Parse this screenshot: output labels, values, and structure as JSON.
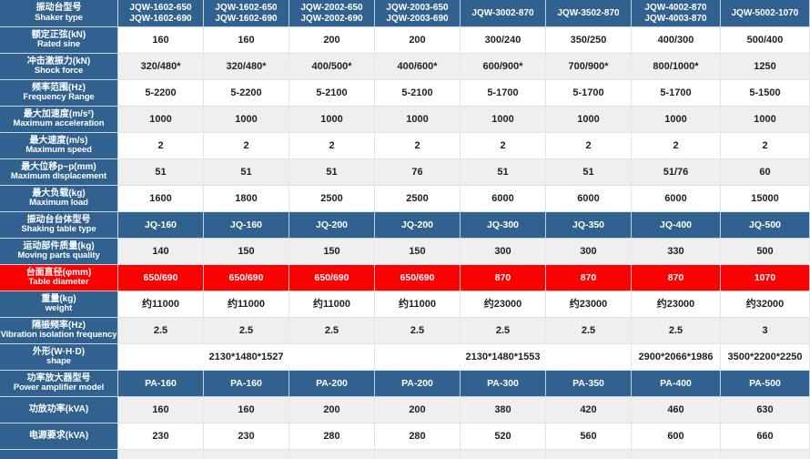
{
  "table": {
    "header": {
      "zh": "振动台型号",
      "en": "Shaker type",
      "models": [
        [
          "JQW-1602-650",
          "JQW-1602-690"
        ],
        [
          "JQW-1602-650",
          "JQW-1602-690"
        ],
        [
          "JQW-2002-650",
          "JQW-2002-690"
        ],
        [
          "JQW-2003-650",
          "JQW-2003-690"
        ],
        [
          "JQW-3002-870"
        ],
        [
          "JQW-3502-870"
        ],
        [
          "JQW-4002-870",
          "JQW-4003-870"
        ],
        [
          "JQW-5002-1070"
        ]
      ]
    },
    "colors": {
      "header_blue": "#31618f",
      "row_gray": "#efeff0",
      "highlight_red": "#fd0000"
    },
    "rows": [
      {
        "zh": "额定正弦(kN)",
        "en": "Rated sine",
        "bg": "white",
        "values": [
          "160",
          "160",
          "200",
          "200",
          "300/240",
          "350/250",
          "400/300",
          "500/400"
        ]
      },
      {
        "zh": "冲击激振力(kN)",
        "en": "Shock force",
        "bg": "gray",
        "values": [
          "320/480*",
          "320/480*",
          "400/500*",
          "400/600*",
          "600/900*",
          "700/900*",
          "800/1000*",
          "1250"
        ]
      },
      {
        "zh": "频率范围(Hz)",
        "en": "Frequency Range",
        "bg": "white",
        "values": [
          "5-2200",
          "5-2200",
          "5-2100",
          "5-2100",
          "5-1700",
          "5-1700",
          "5-1700",
          "5-1500"
        ]
      },
      {
        "zh": "最大加速度(m/s²)",
        "en": "Maximum acceleration",
        "bg": "gray",
        "values": [
          "1000",
          "1000",
          "1000",
          "1000",
          "1000",
          "1000",
          "1000",
          "1000"
        ]
      },
      {
        "zh": "最大速度(m/s)",
        "en": "Maximum speed",
        "bg": "white",
        "values": [
          "2",
          "2",
          "2",
          "2",
          "2",
          "2",
          "2",
          "2"
        ]
      },
      {
        "zh": "最大位移p~p(mm)",
        "en": "Maximum displacement",
        "bg": "gray",
        "values": [
          "51",
          "51",
          "51",
          "76",
          "51",
          "51",
          "51/76",
          "60"
        ]
      },
      {
        "zh": "最大负载(kg)",
        "en": "Maximum load",
        "bg": "white",
        "values": [
          "1600",
          "1800",
          "2500",
          "2500",
          "6000",
          "6000",
          "6000",
          "15000"
        ]
      },
      {
        "zh": "振动台台体型号",
        "en": "Shaking table type",
        "bg": "blue",
        "values": [
          "JQ-160",
          "JQ-160",
          "JQ-200",
          "JQ-200",
          "JQ-300",
          "JQ-350",
          "JQ-400",
          "JQ-500"
        ]
      },
      {
        "zh": "运动部件质量(kg)",
        "en": "Moving parts quality",
        "bg": "gray",
        "values": [
          "140",
          "150",
          "150",
          "150",
          "300",
          "300",
          "330",
          "500"
        ]
      },
      {
        "zh": "台面直径(φmm)",
        "en": "Table diameter",
        "bg": "red",
        "values": [
          "650/690",
          "650/690",
          "650/690",
          "650/690",
          "870",
          "870",
          "870",
          "1070"
        ]
      },
      {
        "zh": "重量(kg)",
        "en": "weight",
        "bg": "white",
        "values": [
          "约11000",
          "约11000",
          "约11000",
          "约11000",
          "约23000",
          "约23000",
          "约23000",
          "约32000"
        ]
      },
      {
        "zh": "隔振频率(Hz)",
        "en": "Vibration isolation frequency",
        "bg": "gray",
        "values": [
          "2.5",
          "2.5",
          "2.5",
          "2.5",
          "2.5",
          "2.5",
          "2.5",
          "3"
        ]
      },
      {
        "zh": "外形(W·H·D)",
        "en": "shape",
        "bg": "white",
        "cells": [
          {
            "text": "2130*1480*1527",
            "span": 3
          },
          {
            "text": "2130*1480*1553",
            "span": 3
          },
          {
            "text": "2900*2066*1986",
            "span": 1
          },
          {
            "text": "3500*2200*2250",
            "span": 1
          }
        ]
      },
      {
        "zh": "功率放大器型号",
        "en": "Power amplifier model",
        "bg": "blue",
        "values": [
          "PA-160",
          "PA-160",
          "PA-200",
          "PA-200",
          "PA-300",
          "PA-350",
          "PA-400",
          "PA-500"
        ]
      },
      {
        "zh": "功放功率(kVA)",
        "en": "",
        "bg": "gray",
        "values": [
          "160",
          "160",
          "200",
          "200",
          "380",
          "420",
          "460",
          "630"
        ]
      },
      {
        "zh": "电源要求(kVA)",
        "en": "",
        "bg": "white",
        "values": [
          "230",
          "230",
          "280",
          "280",
          "520",
          "560",
          "600",
          "660"
        ]
      }
    ],
    "partial_row_bg": "gray"
  }
}
